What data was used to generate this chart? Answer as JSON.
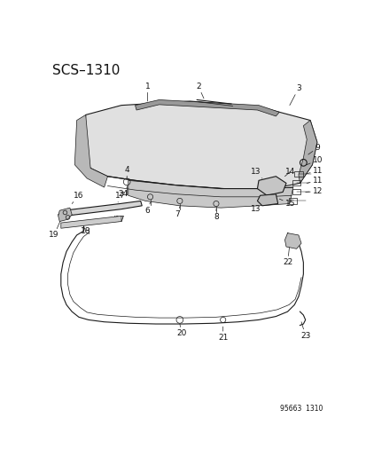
{
  "title": "SCS–1310",
  "footer": "95663  1310",
  "bg_color": "#ffffff",
  "line_color": "#1a1a1a",
  "text_color": "#111111",
  "title_fontsize": 11,
  "label_fontsize": 6.5,
  "footer_fontsize": 5.5,
  "fig_width": 4.14,
  "fig_height": 5.33,
  "dpi": 100
}
